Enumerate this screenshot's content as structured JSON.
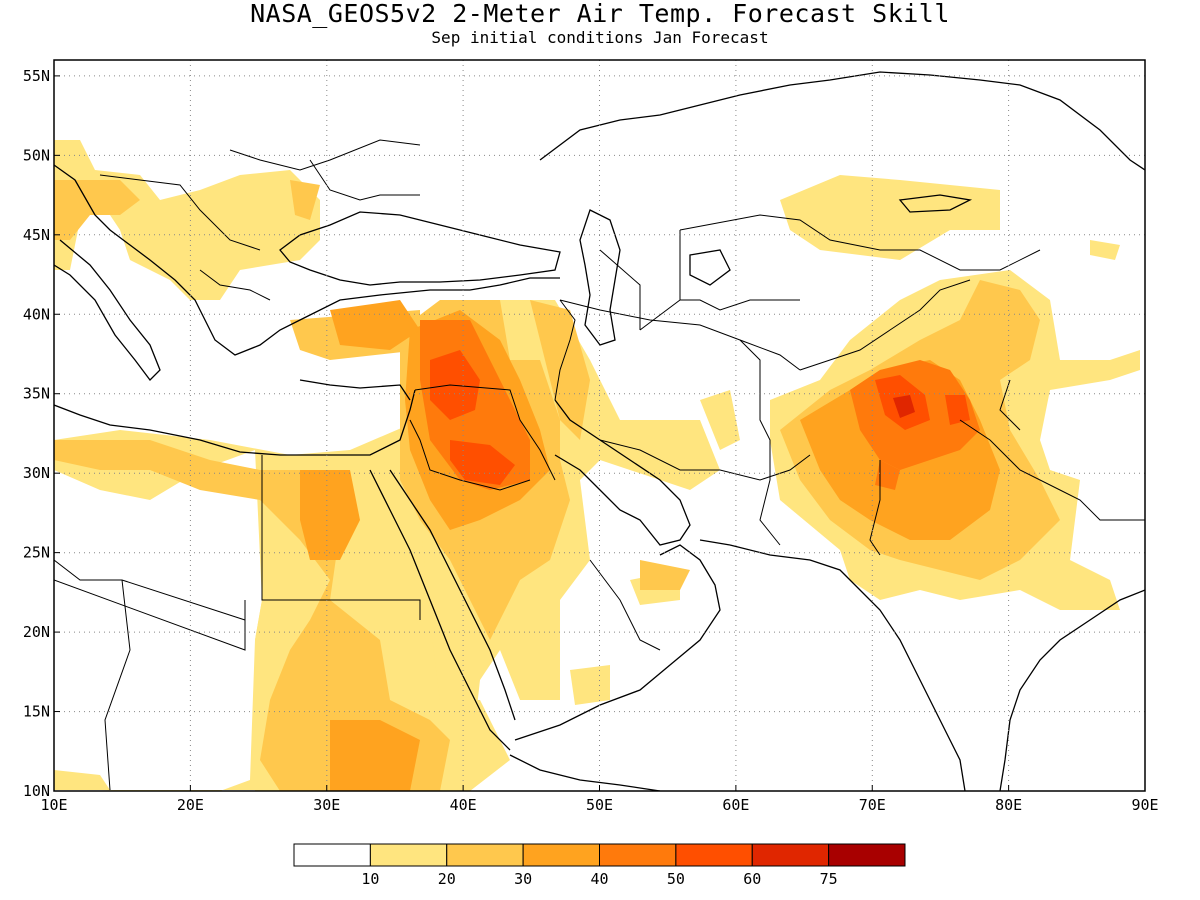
{
  "title": "NASA_GEOS5v2 2-Meter Air Temp. Forecast Skill",
  "subtitle": "Sep initial conditions  Jan Forecast",
  "lon_labels": [
    "10E",
    "20E",
    "30E",
    "40E",
    "50E",
    "60E",
    "70E",
    "80E",
    "90E"
  ],
  "lat_labels": [
    "55N",
    "50N",
    "45N",
    "40N",
    "35N",
    "30N",
    "25N",
    "20N",
    "15N",
    "10N"
  ],
  "colorbar": {
    "labels": [
      "10",
      "20",
      "30",
      "40",
      "50",
      "60",
      "75"
    ],
    "colors": [
      "#ffffff",
      "#ffe57f",
      "#ffc84d",
      "#ffa31f",
      "#ff7a0c",
      "#ff4f00",
      "#e02600",
      "#a80000"
    ]
  },
  "map_extent": {
    "lon": [
      10,
      90
    ],
    "lat": [
      10,
      56
    ]
  },
  "grid_lines": "dotted",
  "variable": "forecast skill (contour shading)"
}
